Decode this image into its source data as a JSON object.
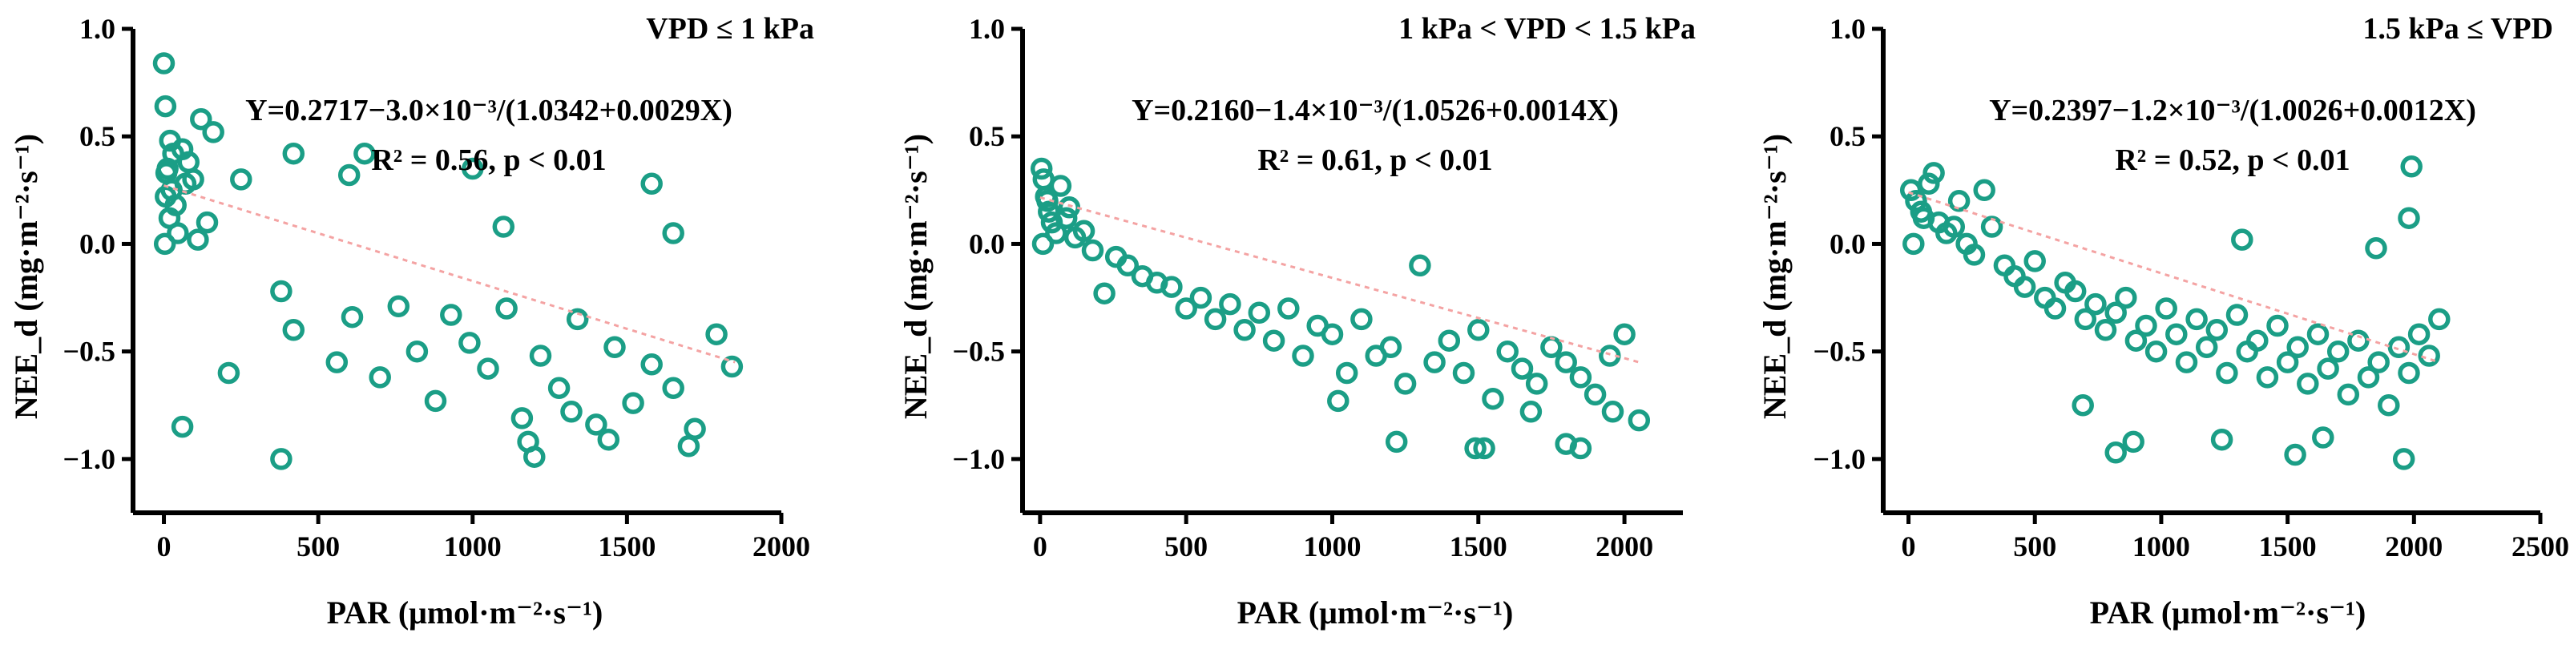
{
  "figure": {
    "label": "NEE_d vs PAR under three VPD classes"
  },
  "chart_data": [
    {
      "type": "scatter",
      "title": "VPD ≤ 1 kPa",
      "xlabel": "PAR (μmol·m⁻²·s⁻¹)",
      "ylabel": "NEE_d (mg·m⁻²·s⁻¹)",
      "xlim": [
        -100,
        2000
      ],
      "ylim": [
        -1.25,
        1.0
      ],
      "xticks": [
        0,
        500,
        1000,
        1500,
        2000
      ],
      "xtick_labels": [
        "0",
        "500",
        "1000",
        "1500",
        "2000"
      ],
      "yticks": [
        1.0,
        0.5,
        0.0,
        -0.5,
        -1.0
      ],
      "ytick_labels": [
        "1.0",
        "0.5",
        "0.0",
        "−0.5",
        "−1.0"
      ],
      "equation": "Y=0.2717−3.0×10⁻³/(1.0342+0.0029X)",
      "stats": "R² = 0.56, p < 0.01",
      "fit": {
        "a": 0.2717,
        "b": 0.003,
        "c": 1.0342,
        "d": 0.0029
      },
      "x_range_data": [
        0,
        1850
      ],
      "points": [
        [
          0,
          0.84
        ],
        [
          5,
          0.64
        ],
        [
          20,
          0.48
        ],
        [
          12,
          0.35
        ],
        [
          30,
          0.42
        ],
        [
          60,
          0.44
        ],
        [
          80,
          0.38
        ],
        [
          120,
          0.58
        ],
        [
          160,
          0.52
        ],
        [
          6,
          0.22
        ],
        [
          18,
          0.12
        ],
        [
          45,
          0.05
        ],
        [
          70,
          0.28
        ],
        [
          95,
          0.3
        ],
        [
          3,
          0.0
        ],
        [
          38,
          0.18
        ],
        [
          140,
          0.1
        ],
        [
          8,
          0.33
        ],
        [
          25,
          0.25
        ],
        [
          110,
          0.02
        ],
        [
          250,
          0.3
        ],
        [
          420,
          0.42
        ],
        [
          600,
          0.32
        ],
        [
          650,
          0.42
        ],
        [
          1000,
          0.35
        ],
        [
          1100,
          0.08
        ],
        [
          1580,
          0.28
        ],
        [
          1650,
          0.05
        ],
        [
          210,
          -0.6
        ],
        [
          380,
          -0.22
        ],
        [
          420,
          -0.4
        ],
        [
          560,
          -0.55
        ],
        [
          610,
          -0.34
        ],
        [
          700,
          -0.62
        ],
        [
          760,
          -0.29
        ],
        [
          820,
          -0.5
        ],
        [
          880,
          -0.73
        ],
        [
          930,
          -0.33
        ],
        [
          990,
          -0.46
        ],
        [
          1050,
          -0.58
        ],
        [
          1110,
          -0.3
        ],
        [
          1160,
          -0.81
        ],
        [
          1220,
          -0.52
        ],
        [
          1280,
          -0.67
        ],
        [
          1340,
          -0.35
        ],
        [
          1400,
          -0.84
        ],
        [
          1460,
          -0.48
        ],
        [
          1520,
          -0.74
        ],
        [
          1580,
          -0.56
        ],
        [
          1650,
          -0.67
        ],
        [
          1720,
          -0.86
        ],
        [
          1790,
          -0.42
        ],
        [
          1840,
          -0.57
        ],
        [
          60,
          -0.85
        ],
        [
          380,
          -1.0
        ],
        [
          1200,
          -0.99
        ],
        [
          1440,
          -0.91
        ],
        [
          1700,
          -0.94
        ],
        [
          1180,
          -0.92
        ],
        [
          1320,
          -0.78
        ]
      ]
    },
    {
      "type": "scatter",
      "title": "1 kPa < VPD < 1.5 kPa",
      "xlabel": "PAR (μmol·m⁻²·s⁻¹)",
      "ylabel": "NEE_d (mg·m⁻²·s⁻¹)",
      "xlim": [
        -60,
        2200
      ],
      "ylim": [
        -1.25,
        1.0
      ],
      "xticks": [
        0,
        500,
        1000,
        1500,
        2000
      ],
      "xtick_labels": [
        "0",
        "500",
        "1000",
        "1500",
        "2000"
      ],
      "yticks": [
        1.0,
        0.5,
        0.0,
        -0.5,
        -1.0
      ],
      "ytick_labels": [
        "1.0",
        "0.5",
        "0.0",
        "−0.5",
        "−1.0"
      ],
      "equation": "Y=0.2160−1.4×10⁻³/(1.0526+0.0014X)",
      "stats": "R² = 0.61, p < 0.01",
      "fit": {
        "a": 0.216,
        "b": 0.0014,
        "c": 1.0526,
        "d": 0.0014
      },
      "x_range_data": [
        0,
        2050
      ],
      "points": [
        [
          5,
          0.35
        ],
        [
          12,
          0.3
        ],
        [
          20,
          0.22
        ],
        [
          30,
          0.15
        ],
        [
          40,
          0.1
        ],
        [
          55,
          0.05
        ],
        [
          70,
          0.27
        ],
        [
          90,
          0.12
        ],
        [
          10,
          0.0
        ],
        [
          25,
          0.2
        ],
        [
          100,
          0.17
        ],
        [
          120,
          0.03
        ],
        [
          150,
          0.06
        ],
        [
          180,
          -0.03
        ],
        [
          220,
          -0.23
        ],
        [
          260,
          -0.06
        ],
        [
          300,
          -0.1
        ],
        [
          350,
          -0.15
        ],
        [
          400,
          -0.18
        ],
        [
          450,
          -0.2
        ],
        [
          500,
          -0.3
        ],
        [
          550,
          -0.25
        ],
        [
          600,
          -0.35
        ],
        [
          650,
          -0.28
        ],
        [
          700,
          -0.4
        ],
        [
          750,
          -0.32
        ],
        [
          800,
          -0.45
        ],
        [
          850,
          -0.3
        ],
        [
          900,
          -0.52
        ],
        [
          950,
          -0.38
        ],
        [
          1000,
          -0.42
        ],
        [
          1050,
          -0.6
        ],
        [
          1100,
          -0.35
        ],
        [
          1150,
          -0.52
        ],
        [
          1200,
          -0.48
        ],
        [
          1250,
          -0.65
        ],
        [
          1300,
          -0.1
        ],
        [
          1350,
          -0.55
        ],
        [
          1400,
          -0.45
        ],
        [
          1450,
          -0.6
        ],
        [
          1500,
          -0.4
        ],
        [
          1550,
          -0.72
        ],
        [
          1600,
          -0.5
        ],
        [
          1650,
          -0.58
        ],
        [
          1700,
          -0.65
        ],
        [
          1750,
          -0.48
        ],
        [
          1800,
          -0.55
        ],
        [
          1850,
          -0.62
        ],
        [
          1900,
          -0.7
        ],
        [
          1950,
          -0.52
        ],
        [
          2000,
          -0.42
        ],
        [
          2050,
          -0.82
        ],
        [
          1220,
          -0.92
        ],
        [
          1490,
          -0.95
        ],
        [
          1520,
          -0.95
        ],
        [
          1800,
          -0.93
        ],
        [
          1850,
          -0.95
        ],
        [
          1960,
          -0.78
        ],
        [
          1680,
          -0.78
        ],
        [
          1020,
          -0.73
        ]
      ]
    },
    {
      "type": "scatter",
      "title": "1.5 kPa ≤ VPD",
      "xlabel": "PAR (μmol·m⁻²·s⁻¹)",
      "ylabel": "NEE_d (mg·m⁻²·s⁻¹)",
      "xlim": [
        -100,
        2500
      ],
      "ylim": [
        -1.25,
        1.0
      ],
      "xticks": [
        0,
        500,
        1000,
        1500,
        2000,
        2500
      ],
      "xtick_labels": [
        "0",
        "500",
        "1000",
        "1500",
        "2000",
        "2500"
      ],
      "yticks": [
        1.0,
        0.5,
        0.0,
        -0.5,
        -1.0
      ],
      "ytick_labels": [
        "1.0",
        "0.5",
        "0.0",
        "−0.5",
        "−1.0"
      ],
      "equation": "Y=0.2397−1.2×10⁻³/(1.0026+0.0012X)",
      "stats": "R² = 0.52, p < 0.01",
      "fit": {
        "a": 0.2397,
        "b": 0.0012,
        "c": 1.0026,
        "d": 0.0012
      },
      "x_range_data": [
        0,
        2100
      ],
      "points": [
        [
          10,
          0.25
        ],
        [
          30,
          0.2
        ],
        [
          50,
          0.15
        ],
        [
          80,
          0.28
        ],
        [
          100,
          0.33
        ],
        [
          120,
          0.1
        ],
        [
          150,
          0.05
        ],
        [
          180,
          0.08
        ],
        [
          20,
          0.0
        ],
        [
          60,
          0.12
        ],
        [
          200,
          0.2
        ],
        [
          230,
          0.0
        ],
        [
          260,
          -0.05
        ],
        [
          300,
          0.25
        ],
        [
          330,
          0.08
        ],
        [
          380,
          -0.1
        ],
        [
          420,
          -0.15
        ],
        [
          460,
          -0.2
        ],
        [
          500,
          -0.08
        ],
        [
          540,
          -0.25
        ],
        [
          580,
          -0.3
        ],
        [
          620,
          -0.18
        ],
        [
          660,
          -0.22
        ],
        [
          700,
          -0.35
        ],
        [
          740,
          -0.28
        ],
        [
          780,
          -0.4
        ],
        [
          820,
          -0.32
        ],
        [
          860,
          -0.25
        ],
        [
          900,
          -0.45
        ],
        [
          940,
          -0.38
        ],
        [
          980,
          -0.5
        ],
        [
          1020,
          -0.3
        ],
        [
          1060,
          -0.42
        ],
        [
          1100,
          -0.55
        ],
        [
          1140,
          -0.35
        ],
        [
          1180,
          -0.48
        ],
        [
          1220,
          -0.4
        ],
        [
          1260,
          -0.6
        ],
        [
          1300,
          -0.33
        ],
        [
          1340,
          -0.5
        ],
        [
          1380,
          -0.45
        ],
        [
          1420,
          -0.62
        ],
        [
          1460,
          -0.38
        ],
        [
          1500,
          -0.55
        ],
        [
          1540,
          -0.48
        ],
        [
          1580,
          -0.65
        ],
        [
          1620,
          -0.42
        ],
        [
          1660,
          -0.58
        ],
        [
          1700,
          -0.5
        ],
        [
          1740,
          -0.7
        ],
        [
          1780,
          -0.45
        ],
        [
          1820,
          -0.62
        ],
        [
          1860,
          -0.55
        ],
        [
          1900,
          -0.75
        ],
        [
          1940,
          -0.48
        ],
        [
          1980,
          -0.6
        ],
        [
          2020,
          -0.42
        ],
        [
          2060,
          -0.52
        ],
        [
          2100,
          -0.35
        ],
        [
          690,
          -0.75
        ],
        [
          820,
          -0.97
        ],
        [
          890,
          -0.92
        ],
        [
          1240,
          -0.91
        ],
        [
          1530,
          -0.98
        ],
        [
          1640,
          -0.9
        ],
        [
          1960,
          -1.0
        ],
        [
          1980,
          0.12
        ],
        [
          1990,
          0.36
        ],
        [
          1320,
          0.02
        ],
        [
          1850,
          -0.02
        ]
      ]
    }
  ]
}
